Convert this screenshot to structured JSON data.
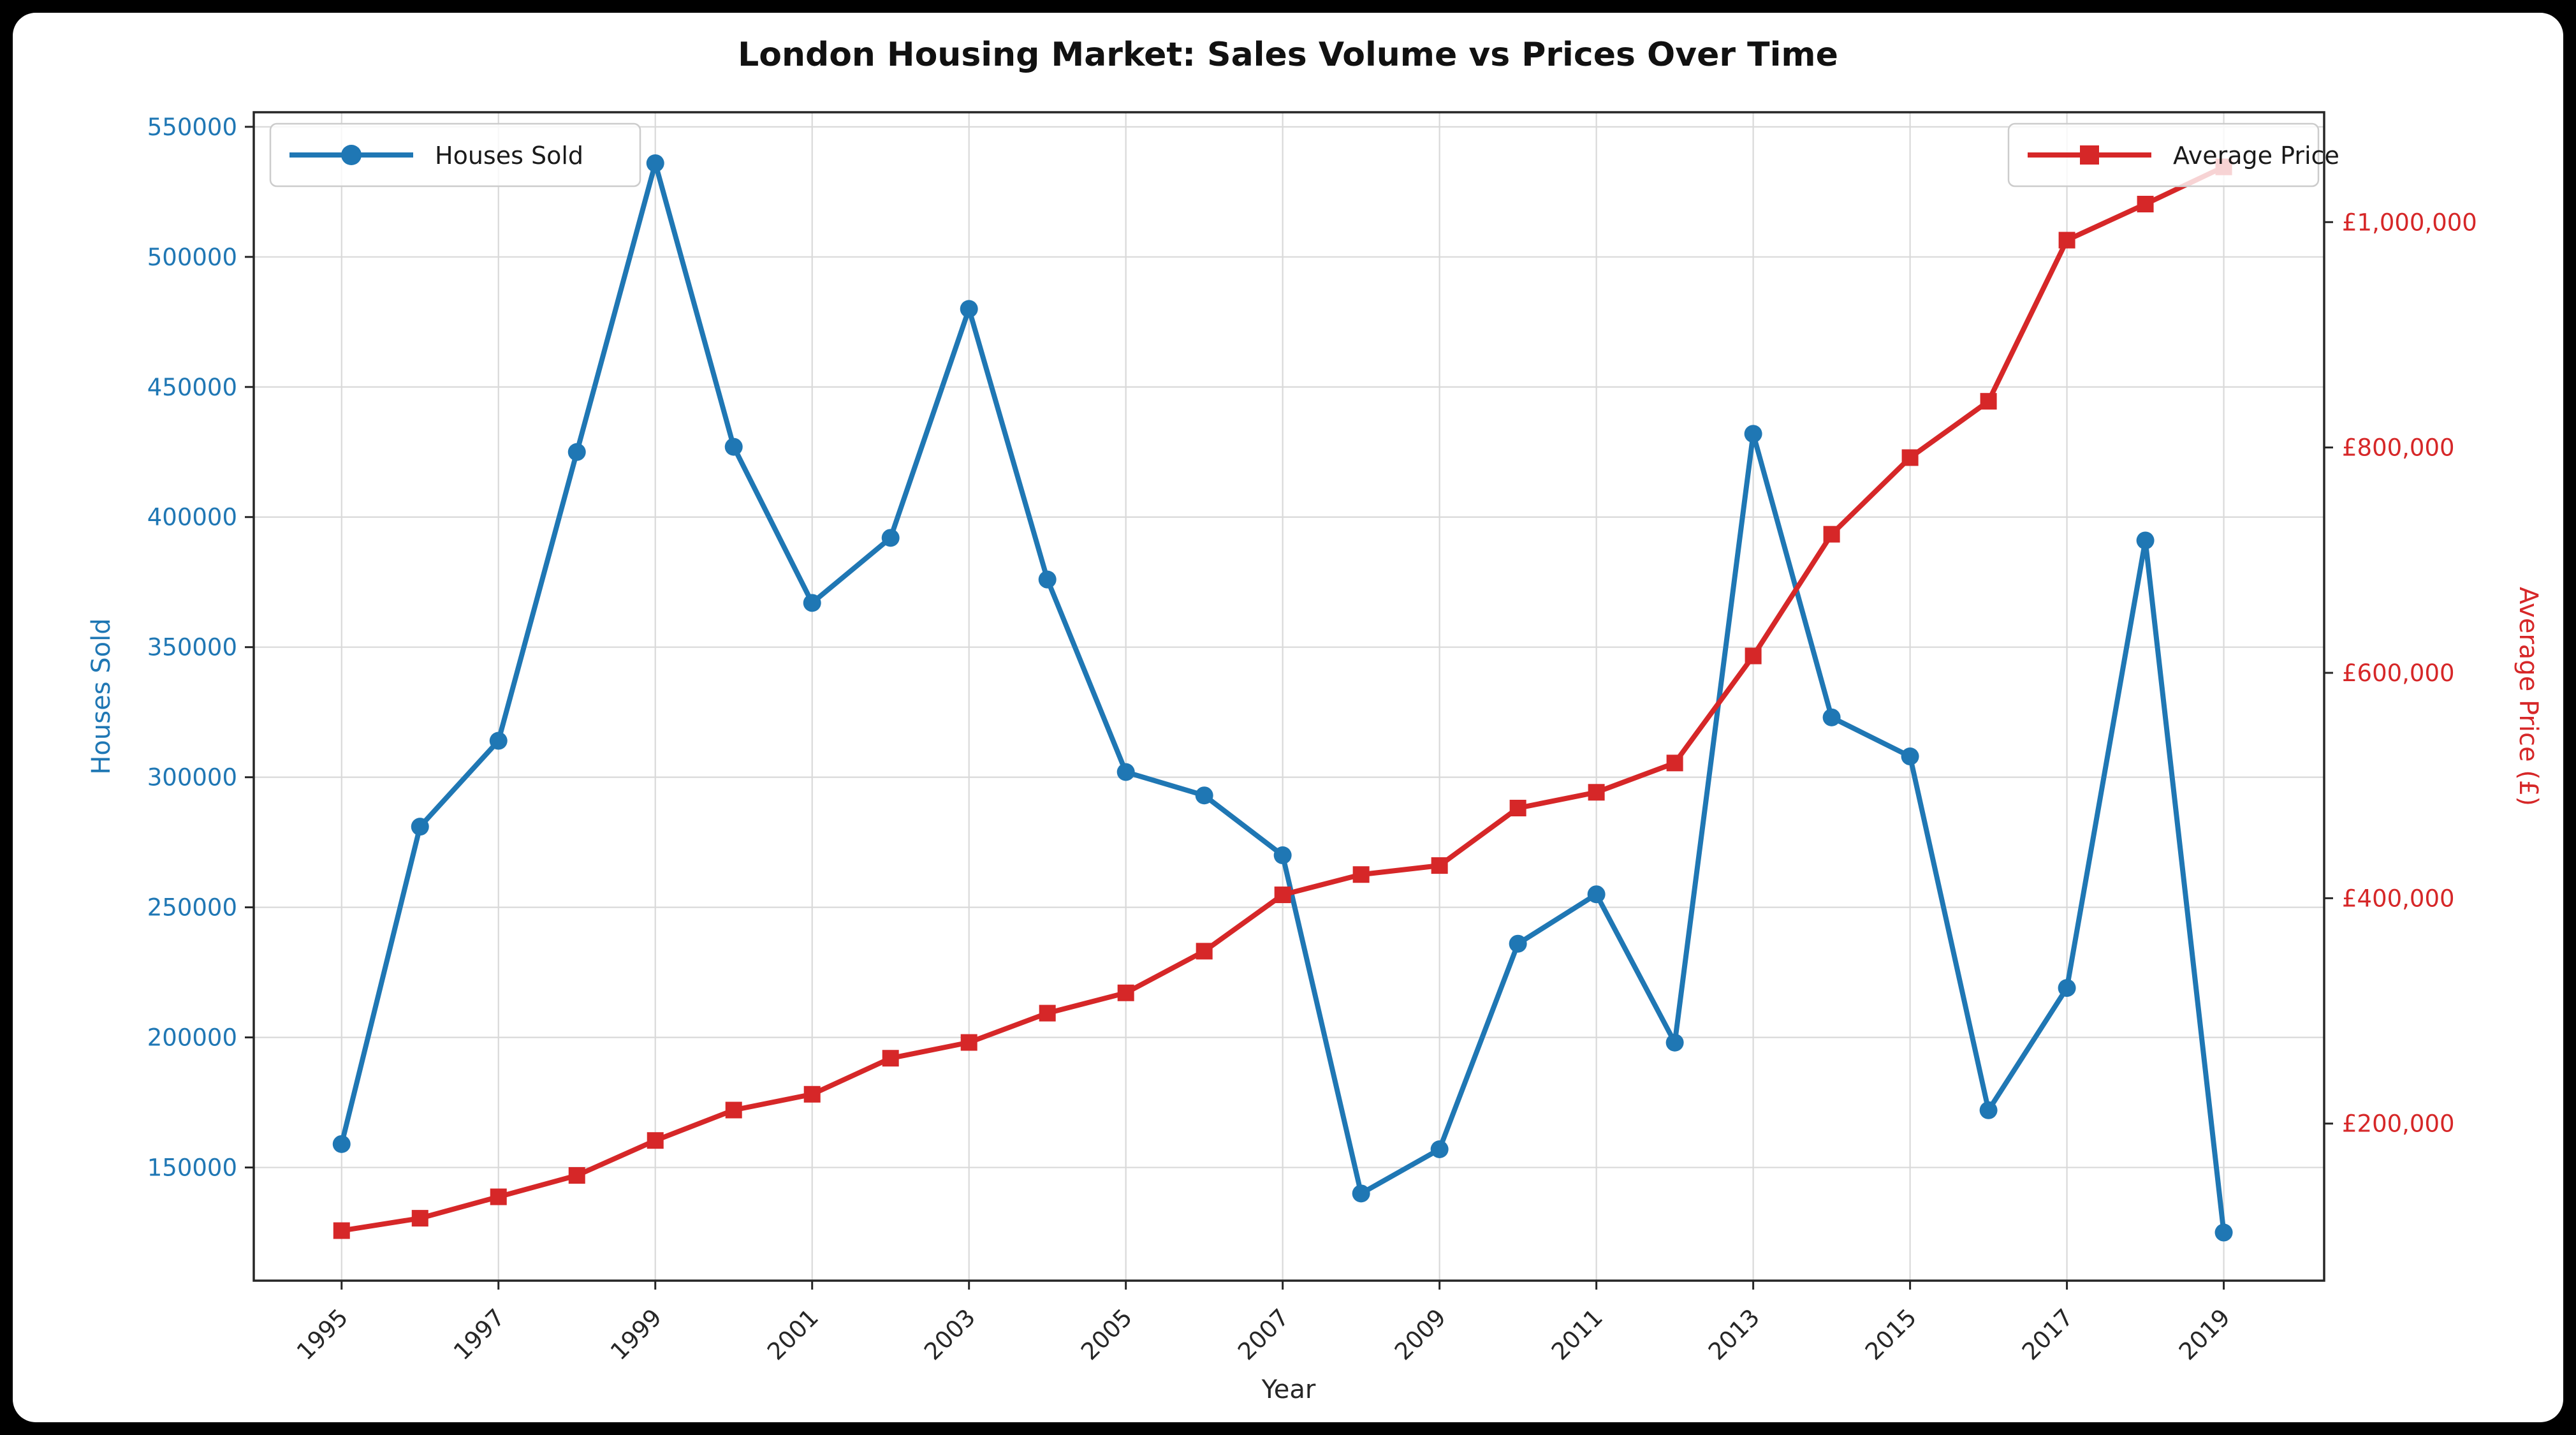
{
  "chart": {
    "title": "London Housing Market: Sales Volume vs Prices Over Time",
    "xlabel": "Year",
    "ylabel_left": "Houses Sold",
    "ylabel_right": "Average Price (£)"
  },
  "legend": {
    "houses_sold": "Houses Sold",
    "average_price": "Average Price"
  },
  "colors": {
    "houses_sold": "#1f77b4",
    "average_price": "#d62728",
    "grid": "#d9d9d9",
    "spine": "#262626",
    "xtick_label": "#262626",
    "title": "#111111",
    "background": "#000000",
    "figure": "#ffffff"
  },
  "axes": {
    "x_ticks": [
      1995,
      1997,
      1999,
      2001,
      2003,
      2005,
      2007,
      2009,
      2011,
      2013,
      2015,
      2017,
      2019
    ],
    "x_tick_labels": [
      "1995",
      "1997",
      "1999",
      "2001",
      "2003",
      "2005",
      "2007",
      "2009",
      "2011",
      "2013",
      "2015",
      "2017",
      "2019"
    ],
    "y_ticks_left_values": [
      150000,
      200000,
      250000,
      300000,
      350000,
      400000,
      450000,
      500000,
      550000
    ],
    "y_ticks_left_labels": [
      "150000",
      "200000",
      "250000",
      "300000",
      "350000",
      "400000",
      "450000",
      "500000",
      "550000"
    ],
    "y_ticks_right_values": [
      200000,
      400000,
      600000,
      800000,
      1000000
    ],
    "y_ticks_right_labels": [
      "£200,000",
      "£400,000",
      "£600,000",
      "£800,000",
      "£1,000,000"
    ]
  },
  "chart_data": {
    "type": "line",
    "title": "London Housing Market: Sales Volume vs Prices Over Time",
    "xlabel": "Year",
    "ylabel_left": "Houses Sold",
    "ylabel_right": "Average Price (£)",
    "grid": true,
    "x": [
      1995,
      1996,
      1997,
      1998,
      1999,
      2000,
      2001,
      2002,
      2003,
      2004,
      2005,
      2006,
      2007,
      2008,
      2009,
      2010,
      2011,
      2012,
      2013,
      2014,
      2015,
      2016,
      2017,
      2018,
      2019
    ],
    "series": [
      {
        "name": "Houses Sold",
        "axis": "left",
        "color": "#1f77b4",
        "marker": "circle",
        "legend_position": "upper left",
        "values": [
          159000,
          281000,
          314000,
          425000,
          536000,
          427000,
          367000,
          392000,
          480000,
          376000,
          302000,
          293000,
          270000,
          140000,
          157000,
          236000,
          255000,
          198000,
          432000,
          323000,
          308000,
          172000,
          219000,
          391000,
          125000
        ]
      },
      {
        "name": "Average Price",
        "axis": "right",
        "color": "#d62728",
        "marker": "square",
        "legend_position": "upper right",
        "values": [
          105000,
          116000,
          135000,
          154000,
          185000,
          212000,
          226000,
          258000,
          272000,
          298000,
          316000,
          353000,
          403000,
          421000,
          429000,
          480000,
          494000,
          520000,
          615000,
          723000,
          791000,
          841000,
          984000,
          1016000,
          1049000
        ]
      }
    ],
    "xlim": [
      1993.88,
      2020.28
    ],
    "ylim_left": [
      106500,
      555600
    ],
    "ylim_right": [
      60600,
      1097500
    ]
  }
}
